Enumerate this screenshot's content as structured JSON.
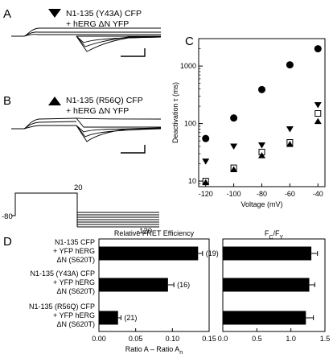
{
  "panels": {
    "A": {
      "letter": "A",
      "marker": "down-triangle",
      "construct_line1": "N1-135 (Y43A) CFP",
      "construct_line2": "+ hERG ΔN YFP"
    },
    "B": {
      "letter": "B",
      "marker": "up-triangle",
      "construct_line1": "N1-135 (R56Q) CFP",
      "construct_line2": "+ hERG ΔN YFP"
    },
    "C": {
      "letter": "C"
    },
    "D": {
      "letter": "D"
    }
  },
  "protocol": {
    "hold_label": "-80",
    "step_label": "20",
    "end_label": "-120"
  },
  "chart_data": [
    {
      "type": "scatter",
      "panel": "C",
      "xlabel": "Voltage (mV)",
      "ylabel": "Deactivation τ (ms)",
      "xlim": [
        -125,
        -35
      ],
      "ylim": [
        8,
        3000
      ],
      "yscale": "log",
      "xticks": [
        -120,
        -100,
        -80,
        -60,
        -40
      ],
      "yticks": [
        10,
        100,
        1000
      ],
      "series": [
        {
          "marker": "filled-circle",
          "color": "#000000",
          "x": [
            -120,
            -100,
            -80,
            -60,
            -40
          ],
          "y": [
            55,
            125,
            390,
            1050,
            2000
          ]
        },
        {
          "marker": "filled-down-triangle",
          "color": "#000000",
          "x": [
            -120,
            -100,
            -80,
            -60,
            -40
          ],
          "y": [
            22,
            40,
            42,
            80,
            210
          ]
        },
        {
          "marker": "open-square",
          "color": "#000000",
          "x": [
            -120,
            -100,
            -80,
            -60,
            -40
          ],
          "y": [
            10,
            17,
            32,
            47,
            150
          ]
        },
        {
          "marker": "filled-up-triangle",
          "color": "#000000",
          "x": [
            -120,
            -100,
            -80,
            -60,
            -40
          ],
          "y": [
            9.5,
            16,
            28,
            44,
            110
          ]
        }
      ]
    },
    {
      "type": "bar",
      "panel": "D-left",
      "orientation": "horizontal",
      "title": "Relative FRET Efficiency",
      "xlabel": "Ratio A – Ratio A",
      "xlabel_sub": "0",
      "xlim": [
        0,
        0.15
      ],
      "xticks": [
        "0.00",
        "0.05",
        "0.10",
        "0.15"
      ],
      "categories": [
        [
          "N1-135 CFP",
          "+ YFP hERG",
          "ΔN (S620T)"
        ],
        [
          "N1-135 (Y43A) CFP",
          "+ YFP hERG",
          "ΔN (S620T)"
        ],
        [
          "N1-135 (R56Q) CFP",
          "+ YFP hERG",
          "ΔN (S620T)"
        ]
      ],
      "values": [
        0.135,
        0.094,
        0.026
      ],
      "errors": [
        0.006,
        0.008,
        0.004
      ],
      "n_labels": [
        "(19)",
        "(16)",
        "(21)"
      ]
    },
    {
      "type": "bar",
      "panel": "D-right",
      "orientation": "horizontal",
      "title": "F",
      "title_sub1": "C",
      "title_mid": "/F",
      "title_sub2": "Y",
      "xlim": [
        0,
        1.5
      ],
      "xticks": [
        "0.0",
        "0.5",
        "1.0",
        "1.5"
      ],
      "values": [
        1.3,
        1.27,
        1.22
      ],
      "errors": [
        0.09,
        0.08,
        0.11
      ]
    }
  ]
}
